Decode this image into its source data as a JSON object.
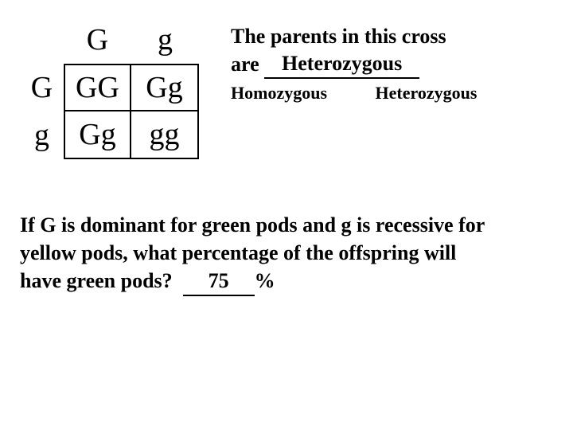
{
  "punnett": {
    "col_headers": [
      "G",
      "g"
    ],
    "row_headers": [
      "G",
      "g"
    ],
    "cells": [
      [
        "GG",
        "Gg"
      ],
      [
        "Gg",
        "gg"
      ]
    ]
  },
  "question1": {
    "line1": "The parents in this cross",
    "line2_prefix": "are",
    "answer": "Heterozygous",
    "options": [
      "Homozygous",
      "Heterozygous"
    ]
  },
  "question2": {
    "text_a": "If G is dominant for green pods and g is recessive for",
    "text_b": "yellow pods, what percentage of the offspring will",
    "text_c_prefix": "have green pods?",
    "answer": "75",
    "suffix": "%"
  },
  "colors": {
    "background": "#ffffff",
    "text": "#000000",
    "border": "#000000"
  }
}
